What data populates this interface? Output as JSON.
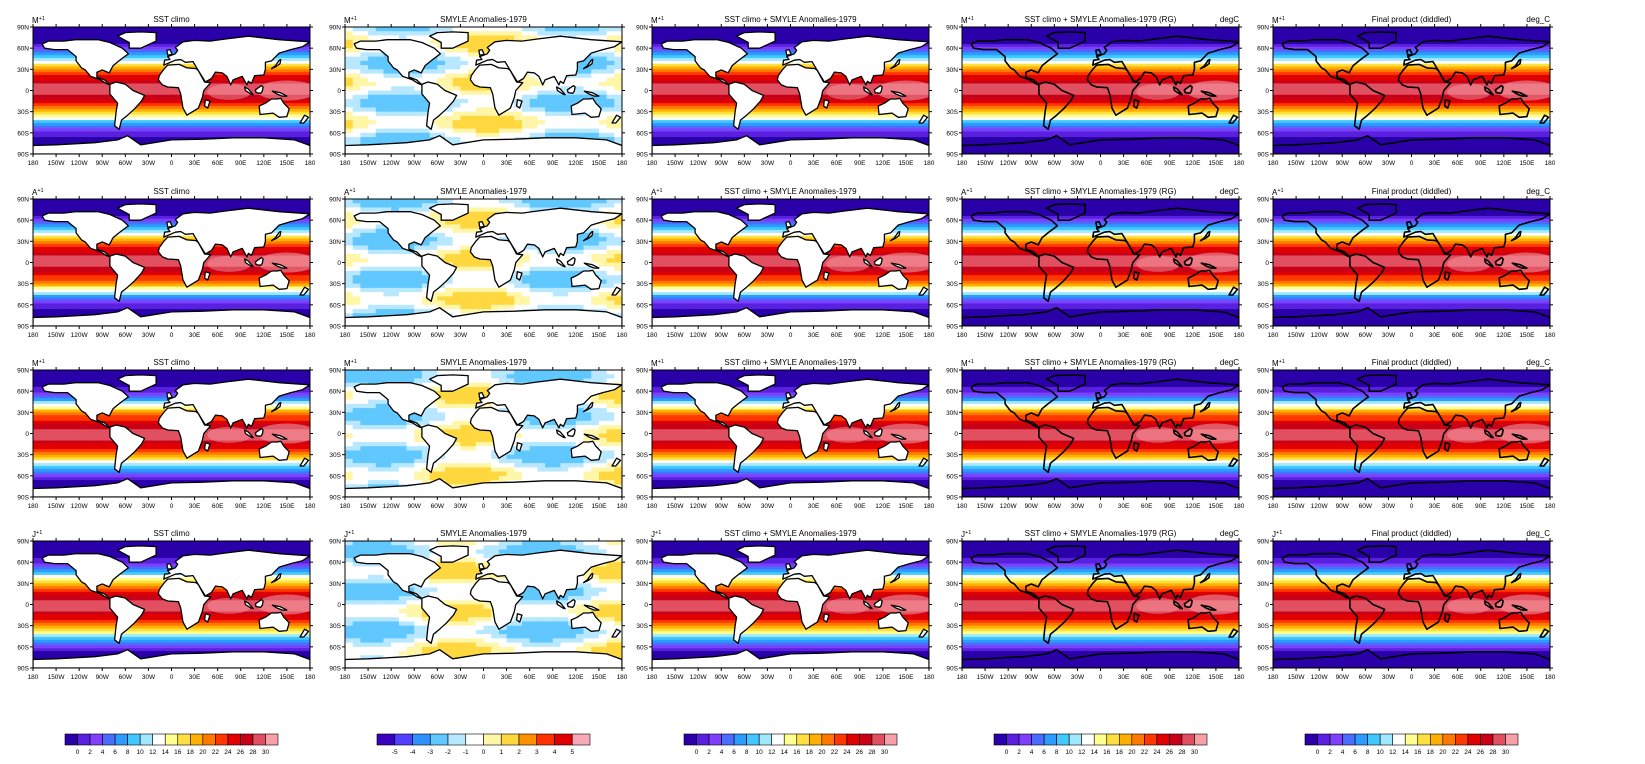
{
  "figure": {
    "columns": [
      {
        "title": "SST climo",
        "units": ""
      },
      {
        "title": "SMYLE Anomalies-1979",
        "units": ""
      },
      {
        "title": "SST climo + SMYLE Anomalies-1979",
        "units": ""
      },
      {
        "title": "SST climo + SMYLE Anomalies-1979 (RG)",
        "units": "degC"
      },
      {
        "title": "Final product (diddled)",
        "units": "deg_C"
      }
    ],
    "rows": [
      {
        "month": "M",
        "superscript": "+1"
      },
      {
        "month": "A",
        "superscript": "+1"
      },
      {
        "month": "M",
        "superscript": "+1"
      },
      {
        "month": "J",
        "superscript": "+1"
      }
    ],
    "lat_ticks": [
      "90N",
      "60N",
      "30N",
      "0",
      "30S",
      "60S",
      "90S"
    ],
    "lon_ticks": [
      "180",
      "150W",
      "120W",
      "90W",
      "60W",
      "30W",
      "0",
      "30E",
      "60E",
      "90E",
      "120E",
      "150E",
      "180"
    ],
    "colorbars": [
      {
        "type": "sst",
        "labels": [
          "0",
          "2",
          "4",
          "6",
          "8",
          "10",
          "12",
          "14",
          "16",
          "18",
          "20",
          "22",
          "24",
          "26",
          "28",
          "30"
        ]
      },
      {
        "type": "anom",
        "labels": [
          "-5",
          "-4",
          "-3",
          "-2",
          "-1",
          "0",
          "1",
          "2",
          "3",
          "4",
          "5"
        ]
      },
      {
        "type": "sst",
        "labels": [
          "0",
          "2",
          "4",
          "6",
          "8",
          "10",
          "12",
          "14",
          "16",
          "18",
          "20",
          "22",
          "24",
          "26",
          "28",
          "30"
        ]
      },
      {
        "type": "sst",
        "labels": [
          "0",
          "2",
          "4",
          "6",
          "8",
          "10",
          "12",
          "14",
          "16",
          "18",
          "20",
          "22",
          "24",
          "26",
          "28",
          "30"
        ]
      },
      {
        "type": "sst",
        "labels": [
          "0",
          "2",
          "4",
          "6",
          "8",
          "10",
          "12",
          "14",
          "16",
          "18",
          "20",
          "22",
          "24",
          "26",
          "28",
          "30"
        ]
      }
    ],
    "sst_colors": [
      "#2a00a8",
      "#5a20e0",
      "#7f3fff",
      "#4a6cff",
      "#2c9cff",
      "#40c8ff",
      "#a0e8ff",
      "#ffffff",
      "#ffff90",
      "#ffe040",
      "#ffb000",
      "#ff7800",
      "#ff3800",
      "#e00000",
      "#c80018",
      "#e05060",
      "#f8a0a8"
    ],
    "anom_colors": [
      "#3a00c0",
      "#5040ff",
      "#3090ff",
      "#60c8ff",
      "#b8e8ff",
      "#ffffff",
      "#fff6a8",
      "#ffd840",
      "#ff9000",
      "#ff3000",
      "#e00000",
      "#f8a8b8"
    ]
  }
}
